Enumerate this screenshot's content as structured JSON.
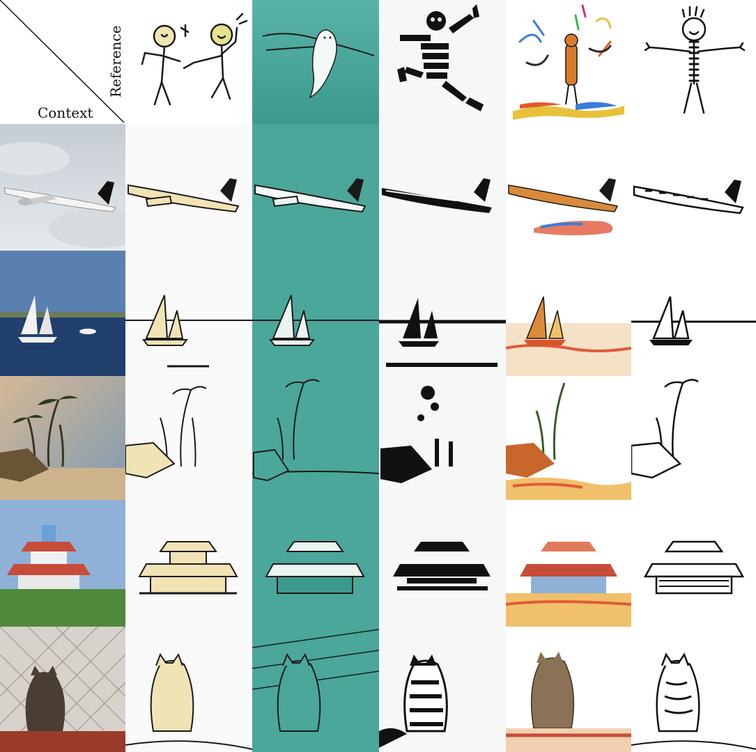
{
  "figure": {
    "corner": {
      "reference_label": "Reference",
      "context_label": "Context"
    },
    "columns": [
      {
        "style": "stick-figure-friends",
        "palette": [
          "#ffffff",
          "#f3ecc6",
          "#1a1a1a"
        ]
      },
      {
        "style": "teal-ghost",
        "palette": [
          "#4aa79a",
          "#e9f4f1",
          "#1a1a1a"
        ]
      },
      {
        "style": "black-stripes",
        "palette": [
          "#f6f7f7",
          "#111111"
        ]
      },
      {
        "style": "colorful-scribble",
        "palette": [
          "#ffffff",
          "#d97b2c",
          "#3b7dd8",
          "#e8c13a"
        ]
      },
      {
        "style": "striped-stick",
        "palette": [
          "#ffffff",
          "#111111"
        ]
      }
    ],
    "rows": [
      {
        "subject": "airplane",
        "photo_colors": [
          "#b9c4cc",
          "#e9ecef",
          "#1a1a1a"
        ]
      },
      {
        "subject": "sailboats",
        "photo_colors": [
          "#5a7fb0",
          "#203a66",
          "#f0f0f0"
        ]
      },
      {
        "subject": "palm-beach",
        "photo_colors": [
          "#b9a58a",
          "#6e8aa2",
          "#3b3520"
        ]
      },
      {
        "subject": "pavilion",
        "photo_colors": [
          "#8fb1d8",
          "#c74c3a",
          "#4e8a3a"
        ]
      },
      {
        "subject": "cat",
        "photo_colors": [
          "#d8d2cc",
          "#4a3e33",
          "#9b3b2a"
        ]
      }
    ]
  }
}
